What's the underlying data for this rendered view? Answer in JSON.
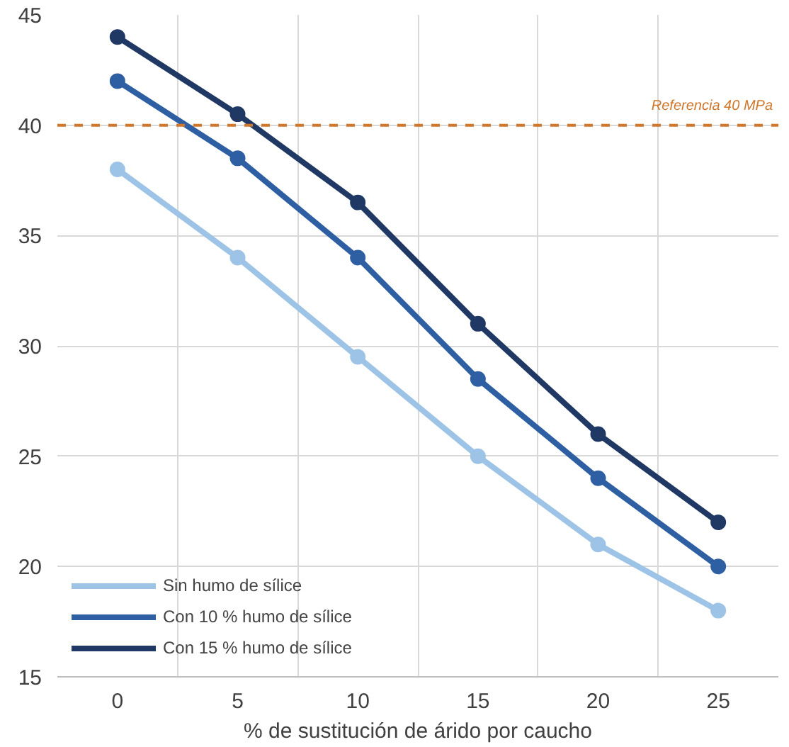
{
  "chart_data": {
    "type": "line",
    "xlabel": "% de sustitución de árido por caucho",
    "categories": [
      "0",
      "5",
      "10",
      "15",
      "20",
      "25"
    ],
    "series": [
      {
        "name": "Sin humo de sílice",
        "color": "#9dc3e6",
        "values": [
          38,
          34,
          29.5,
          25,
          21,
          18
        ]
      },
      {
        "name": "Con 10 % humo de sílice",
        "color": "#2e5fa3",
        "values": [
          42,
          38.5,
          34,
          28.5,
          24,
          20
        ]
      },
      {
        "name": "Con 15 % humo de sílice",
        "color": "#1f3864",
        "values": [
          44,
          40.5,
          36.5,
          31,
          26,
          22
        ]
      }
    ],
    "ylim": [
      15,
      45
    ],
    "yticks": [
      15,
      20,
      25,
      30,
      35,
      40,
      45
    ],
    "ref_lines": [
      {
        "axis": "y",
        "value": 40,
        "label": "Referencia 40 MPa",
        "color": "#d0772a",
        "line_style": "dashed"
      }
    ],
    "grid": true,
    "legend": "bottom left",
    "marker": "circle",
    "line_style": "solid"
  }
}
